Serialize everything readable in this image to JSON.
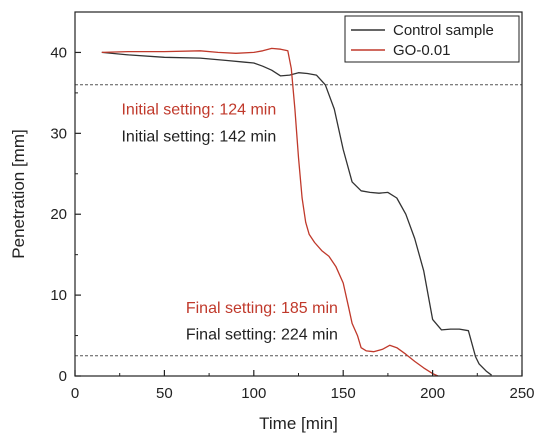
{
  "chart_data": {
    "type": "line",
    "xlabel": "Time [min]",
    "ylabel": "Penetration [mm]",
    "xlim": [
      0,
      250
    ],
    "ylim": [
      0,
      45
    ],
    "xticks": [
      "0",
      "50",
      "100",
      "150",
      "200",
      "250"
    ],
    "yticks": [
      "0",
      "10",
      "20",
      "30",
      "40"
    ],
    "grid": false,
    "legend_position": "top-right",
    "series": [
      {
        "name": "Control sample",
        "color": "#333333",
        "x": [
          15,
          30,
          50,
          70,
          85,
          95,
          100,
          105,
          110,
          115,
          120,
          125,
          130,
          135,
          140,
          145,
          150,
          155,
          160,
          165,
          170,
          175,
          180,
          185,
          190,
          195,
          200,
          205,
          210,
          215,
          220,
          224,
          226,
          230,
          233
        ],
        "y": [
          40.0,
          39.7,
          39.4,
          39.3,
          39.0,
          38.8,
          38.7,
          38.3,
          37.8,
          37.1,
          37.2,
          37.5,
          37.4,
          37.2,
          36.0,
          33.0,
          28.0,
          24.0,
          22.9,
          22.7,
          22.6,
          22.7,
          22.0,
          20.0,
          17.0,
          13.0,
          7.0,
          5.7,
          5.8,
          5.8,
          5.6,
          2.4,
          1.5,
          0.6,
          0.1
        ]
      },
      {
        "name": "GO-0.01",
        "color": "#c0392b",
        "x": [
          15,
          30,
          50,
          70,
          80,
          90,
          100,
          105,
          110,
          115,
          119,
          121,
          123,
          125,
          127,
          129,
          131,
          134,
          138,
          142,
          146,
          150,
          153,
          155,
          158,
          160,
          163,
          167,
          172,
          176,
          180,
          185,
          190,
          195,
          200,
          203
        ],
        "y": [
          40.0,
          40.1,
          40.1,
          40.2,
          40.0,
          39.9,
          40.0,
          40.2,
          40.5,
          40.4,
          40.2,
          38.0,
          33.0,
          27.0,
          22.0,
          19.0,
          17.5,
          16.5,
          15.5,
          14.8,
          13.5,
          11.5,
          8.5,
          6.5,
          5.0,
          3.5,
          3.1,
          3.0,
          3.3,
          3.8,
          3.5,
          2.7,
          1.8,
          1.0,
          0.3,
          0.0
        ]
      }
    ],
    "reference_lines": [
      {
        "axis": "y",
        "value": 36,
        "style": "dashed"
      },
      {
        "axis": "y",
        "value": 2.5,
        "style": "dashed"
      }
    ],
    "annotations": [
      {
        "text": "Initial setting: 124 min",
        "color": "#c0392b",
        "x": 26,
        "y": 32.3
      },
      {
        "text": "Initial setting: 142 min",
        "color": "#222222",
        "x": 26,
        "y": 29.0
      },
      {
        "text": "Final setting: 185 min",
        "color": "#c0392b",
        "x": 62,
        "y": 7.8
      },
      {
        "text": "Final setting: 224 min",
        "color": "#222222",
        "x": 62,
        "y": 4.5
      }
    ]
  }
}
